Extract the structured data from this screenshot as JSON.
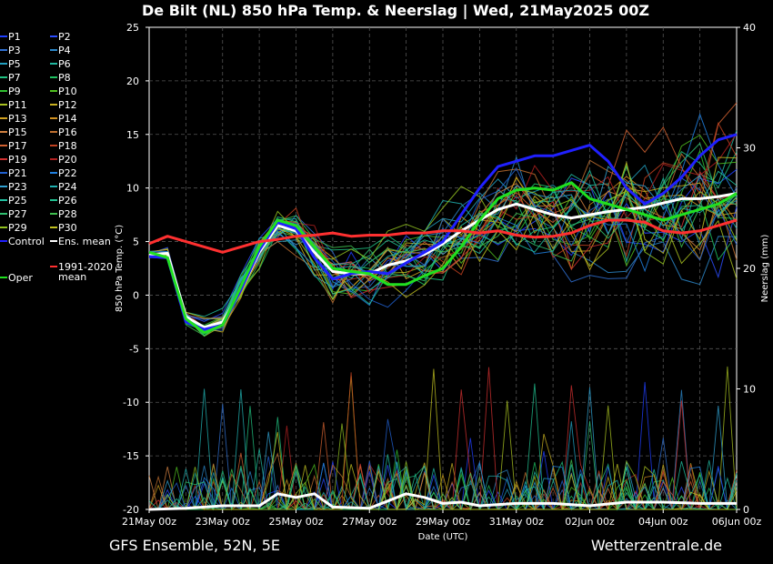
{
  "chart_data": {
    "type": "line",
    "title": "De Bilt  (NL)  850 hPa Temp. & Neerslag | Wed, 21May2025 00Z",
    "xlabel": "Date (UTC)",
    "ylabel": "850 hPa Temp. (°C)",
    "y2label": "Neerslag (mm)",
    "ylim": [
      -20,
      25
    ],
    "y2lim": [
      0,
      40
    ],
    "yticks": [
      "25",
      "20",
      "15",
      "10",
      "5",
      "0",
      "-5",
      "-10",
      "-15",
      "-20"
    ],
    "y2ticks": [
      "40",
      "30",
      "20",
      "10",
      "0"
    ],
    "xticks": [
      "21May 00z",
      "23May 00z",
      "25May 00z",
      "27May 00z",
      "29May 00z",
      "31May 00z",
      "02Jun 00z",
      "04Jun 00z",
      "06Jun 00z"
    ],
    "xlim_days": [
      0,
      16
    ],
    "grid": true,
    "legend_position": "left",
    "legend": [
      {
        "label": "P1",
        "color": "#1f3fff"
      },
      {
        "label": "P2",
        "color": "#2b4cff"
      },
      {
        "label": "P3",
        "color": "#2f6fd0"
      },
      {
        "label": "P4",
        "color": "#2b86c8"
      },
      {
        "label": "P5",
        "color": "#22a0c0"
      },
      {
        "label": "P6",
        "color": "#21b8a0"
      },
      {
        "label": "P7",
        "color": "#20c080"
      },
      {
        "label": "P8",
        "color": "#1fc060"
      },
      {
        "label": "P9",
        "color": "#30c030"
      },
      {
        "label": "P10",
        "color": "#50c020"
      },
      {
        "label": "P11",
        "color": "#a8c020"
      },
      {
        "label": "P12",
        "color": "#c8b020"
      },
      {
        "label": "P13",
        "color": "#d0a020"
      },
      {
        "label": "P14",
        "color": "#d09020"
      },
      {
        "label": "P15",
        "color": "#d08040"
      },
      {
        "label": "P16",
        "color": "#c07030"
      },
      {
        "label": "P17",
        "color": "#d06030"
      },
      {
        "label": "P18",
        "color": "#c04020"
      },
      {
        "label": "P19",
        "color": "#d03030"
      },
      {
        "label": "P20",
        "color": "#b02020"
      },
      {
        "label": "P21",
        "color": "#2060d0"
      },
      {
        "label": "P22",
        "color": "#2080e0"
      },
      {
        "label": "P23",
        "color": "#30a0d0"
      },
      {
        "label": "P24",
        "color": "#20b0b0"
      },
      {
        "label": "P25",
        "color": "#20c0a0"
      },
      {
        "label": "P26",
        "color": "#20c090"
      },
      {
        "label": "P27",
        "color": "#30c070"
      },
      {
        "label": "P28",
        "color": "#40c050"
      },
      {
        "label": "P29",
        "color": "#90c020"
      },
      {
        "label": "P30",
        "color": "#c0c020"
      },
      {
        "label": "Control",
        "color": "#2020ff"
      },
      {
        "label": "Ens. mean",
        "color": "#ffffff"
      },
      {
        "label": "Oper",
        "color": "#20e020"
      },
      {
        "label": "1991-2020\nmean",
        "color": "#ff3030"
      }
    ],
    "series": [
      {
        "name": "Ens. mean",
        "color": "#ffffff",
        "x": [
          0,
          0.5,
          1,
          1.5,
          2,
          2.5,
          3,
          3.5,
          4,
          4.5,
          5,
          5.5,
          6,
          6.5,
          7,
          7.5,
          8,
          8.5,
          9,
          9.5,
          10,
          10.5,
          11,
          11.5,
          12,
          12.5,
          13,
          13.5,
          14,
          14.5,
          15,
          15.5,
          16
        ],
        "y": [
          3.8,
          3.9,
          -2.0,
          -3.0,
          -2.5,
          0.5,
          4.0,
          6.5,
          6.0,
          4.0,
          2.2,
          2.0,
          2.0,
          2.8,
          3.2,
          3.8,
          4.8,
          6.0,
          7.0,
          8.0,
          8.5,
          8.0,
          7.5,
          7.2,
          7.5,
          7.8,
          8.0,
          8.2,
          8.6,
          9.0,
          9.0,
          9.2,
          9.5
        ]
      },
      {
        "name": "Control",
        "color": "#2020ff",
        "x": [
          0,
          0.5,
          1,
          1.5,
          2,
          2.5,
          3,
          3.5,
          4,
          4.5,
          5,
          5.5,
          6,
          6.5,
          7,
          7.5,
          8,
          8.5,
          9,
          9.5,
          10,
          10.5,
          11,
          11.5,
          12,
          12.5,
          13,
          13.5,
          14,
          14.5,
          15,
          15.5,
          16
        ],
        "y": [
          3.6,
          3.5,
          -2.5,
          -3.2,
          -2.8,
          0.5,
          4.2,
          6.8,
          6.2,
          3.5,
          1.5,
          2.0,
          2.2,
          2.0,
          3.0,
          4.0,
          5.0,
          7.5,
          10.0,
          12.0,
          12.5,
          13.0,
          13.0,
          13.5,
          14.0,
          12.5,
          10.0,
          8.5,
          9.5,
          11.0,
          13.0,
          14.5,
          15.0
        ]
      },
      {
        "name": "Oper",
        "color": "#20e020",
        "x": [
          0,
          0.5,
          1,
          1.5,
          2,
          2.5,
          3,
          3.5,
          4,
          4.5,
          5,
          5.5,
          6,
          6.5,
          7,
          7.5,
          8,
          8.5,
          9,
          9.5,
          10,
          10.5,
          11,
          11.5,
          12,
          12.5,
          13,
          13.5,
          14,
          14.5,
          15,
          15.5,
          16
        ],
        "y": [
          4.0,
          3.5,
          -2.2,
          -3.5,
          -2.8,
          0.8,
          4.5,
          7.0,
          6.5,
          4.5,
          2.5,
          2.2,
          2.0,
          1.0,
          1.0,
          1.8,
          2.5,
          4.5,
          7.0,
          9.0,
          9.8,
          10.0,
          9.8,
          10.5,
          9.0,
          8.5,
          8.0,
          7.5,
          7.0,
          7.5,
          8.0,
          8.5,
          9.5
        ]
      },
      {
        "name": "1991-2020 mean",
        "color": "#ff3030",
        "x": [
          0,
          0.5,
          1,
          1.5,
          2,
          2.5,
          3,
          3.5,
          4,
          4.5,
          5,
          5.5,
          6,
          6.5,
          7,
          7.5,
          8,
          8.5,
          9,
          9.5,
          10,
          10.5,
          11,
          11.5,
          12,
          12.5,
          13,
          13.5,
          14,
          14.5,
          15,
          15.5,
          16
        ],
        "y": [
          4.8,
          5.5,
          5.0,
          4.5,
          4.0,
          4.5,
          5.0,
          5.2,
          5.5,
          5.6,
          5.8,
          5.5,
          5.6,
          5.6,
          5.8,
          5.8,
          6.0,
          6.0,
          5.8,
          6.0,
          5.6,
          5.4,
          5.5,
          5.8,
          6.5,
          7.0,
          7.0,
          6.8,
          6.0,
          5.8,
          6.0,
          6.5,
          7.0
        ]
      },
      {
        "name": "Ens. mean precipitation",
        "color": "#ffffff",
        "axis": "y2",
        "x": [
          0,
          1,
          2,
          3,
          3.5,
          4,
          4.5,
          5,
          6,
          7,
          7.5,
          8,
          8.5,
          9,
          10,
          11,
          12,
          13,
          14,
          15,
          16
        ],
        "y": [
          0,
          0.1,
          0.3,
          0.3,
          1.3,
          1.0,
          1.3,
          0.2,
          0.1,
          1.3,
          1.0,
          0.5,
          0.6,
          0.3,
          0.5,
          0.5,
          0.3,
          0.6,
          0.6,
          0.5,
          0.5
        ]
      }
    ]
  },
  "footer": {
    "left": "GFS Ensemble, 52N, 5E",
    "right": "Wetterzentrale.de"
  }
}
